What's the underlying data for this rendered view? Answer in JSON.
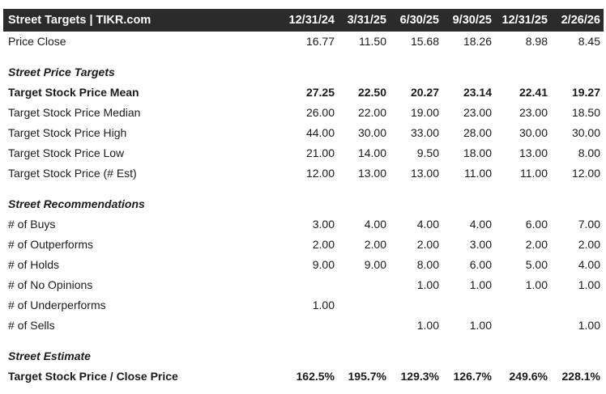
{
  "header": {
    "title": "Street Targets | TIKR.com",
    "columns": [
      "12/31/24",
      "3/31/25",
      "6/30/25",
      "9/30/25",
      "12/31/25",
      "2/26/26"
    ]
  },
  "rows": {
    "price_close": {
      "label": "Price Close",
      "values": [
        "16.77",
        "11.50",
        "15.68",
        "18.26",
        "8.98",
        "8.45"
      ]
    },
    "section_targets": {
      "label": "Street Price Targets"
    },
    "target_mean": {
      "label": "Target Stock Price Mean",
      "values": [
        "27.25",
        "22.50",
        "20.27",
        "23.14",
        "22.41",
        "19.27"
      ]
    },
    "target_median": {
      "label": "Target Stock Price Median",
      "values": [
        "26.00",
        "22.00",
        "19.00",
        "23.00",
        "23.00",
        "18.50"
      ]
    },
    "target_high": {
      "label": "Target Stock Price High",
      "values": [
        "44.00",
        "30.00",
        "33.00",
        "28.00",
        "30.00",
        "30.00"
      ]
    },
    "target_low": {
      "label": "Target Stock Price Low",
      "values": [
        "21.00",
        "14.00",
        "9.50",
        "18.00",
        "13.00",
        "8.00"
      ]
    },
    "target_est": {
      "label": "Target Stock Price (# Est)",
      "values": [
        "12.00",
        "13.00",
        "13.00",
        "11.00",
        "11.00",
        "12.00"
      ]
    },
    "section_recs": {
      "label": "Street Recommendations"
    },
    "buys": {
      "label": "# of Buys",
      "values": [
        "3.00",
        "4.00",
        "4.00",
        "4.00",
        "6.00",
        "7.00"
      ]
    },
    "outperforms": {
      "label": "# of Outperforms",
      "values": [
        "2.00",
        "2.00",
        "2.00",
        "3.00",
        "2.00",
        "2.00"
      ]
    },
    "holds": {
      "label": "# of Holds",
      "values": [
        "9.00",
        "9.00",
        "8.00",
        "6.00",
        "5.00",
        "4.00"
      ]
    },
    "no_opinions": {
      "label": "# of No Opinions",
      "values": [
        "",
        "",
        "1.00",
        "1.00",
        "1.00",
        "1.00"
      ]
    },
    "underperforms": {
      "label": "# of Underperforms",
      "values": [
        "1.00",
        "",
        "",
        "",
        "",
        ""
      ]
    },
    "sells": {
      "label": "# of Sells",
      "values": [
        "",
        "",
        "1.00",
        "1.00",
        "",
        "1.00"
      ]
    },
    "section_estimate": {
      "label": "Street Estimate"
    },
    "target_close_ratio": {
      "label": "Target Stock Price / Close Price",
      "values": [
        "162.5%",
        "195.7%",
        "129.3%",
        "126.7%",
        "249.6%",
        "228.1%"
      ]
    }
  }
}
